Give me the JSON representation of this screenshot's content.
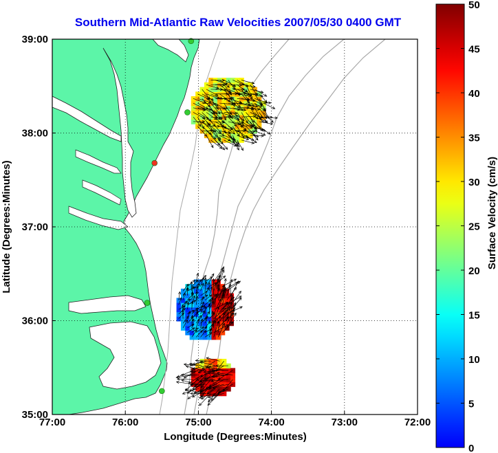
{
  "chart_data": {
    "type": "map",
    "title": "Southern Mid-Atlantic Raw Velocities 2007/05/30 0400 GMT",
    "xlabel": "Longitude (Degrees:Minutes)",
    "ylabel": "Latitude (Degrees:Minutes)",
    "xlim": [
      -77,
      -72
    ],
    "ylim": [
      35,
      39
    ],
    "x_ticks": [
      {
        "value": -77,
        "label": "77:00"
      },
      {
        "value": -76,
        "label": "76:00"
      },
      {
        "value": -75,
        "label": "75:00"
      },
      {
        "value": -74,
        "label": "74:00"
      },
      {
        "value": -73,
        "label": "73:00"
      },
      {
        "value": -72,
        "label": "72:00"
      }
    ],
    "y_ticks": [
      {
        "value": 35,
        "label": "35:00"
      },
      {
        "value": 36,
        "label": "36:00"
      },
      {
        "value": 37,
        "label": "37:00"
      },
      {
        "value": 38,
        "label": "38:00"
      },
      {
        "value": 39,
        "label": "39:00"
      }
    ],
    "grid": true,
    "colorbar": {
      "label": "Surface Velocity (cm/s)",
      "min": 0,
      "max": 50,
      "ticks": [
        {
          "value": 0,
          "label": "0"
        },
        {
          "value": 5,
          "label": "5"
        },
        {
          "value": 10,
          "label": "10"
        },
        {
          "value": 15,
          "label": "15"
        },
        {
          "value": 20,
          "label": "20"
        },
        {
          "value": 25,
          "label": "25"
        },
        {
          "value": 30,
          "label": "30"
        },
        {
          "value": 35,
          "label": "35"
        },
        {
          "value": 40,
          "label": "40"
        },
        {
          "value": 45,
          "label": "45"
        },
        {
          "value": 50,
          "label": "50"
        }
      ]
    },
    "velocity_regions": [
      {
        "name": "",
        "lon_range": [
          -75.1,
          -74.1
        ],
        "lat_range": [
          37.9,
          38.6
        ],
        "speed_range": [
          25,
          36
        ],
        "mean_speed": 31,
        "direction_deg": -30
      },
      {
        "name": "",
        "lon_range": [
          -75.3,
          -74.5
        ],
        "lat_range": [
          35.8,
          36.45
        ],
        "speed_range": [
          8,
          50
        ],
        "mean_speed": 15,
        "direction_deg": 60
      },
      {
        "name": "",
        "lon_range": [
          -75.1,
          -74.5
        ],
        "lat_range": [
          35.2,
          35.6
        ],
        "speed_range": [
          25,
          50
        ],
        "mean_speed": 42,
        "direction_deg": 200
      }
    ],
    "stations": [
      {
        "lon": -75.1,
        "lat": 38.98,
        "status": "active",
        "color": "#33cc33"
      },
      {
        "lon": -75.15,
        "lat": 38.22,
        "status": "active",
        "color": "#33cc33"
      },
      {
        "lon": -75.6,
        "lat": 37.68,
        "status": "inactive",
        "color": "#ee3322"
      },
      {
        "lon": -75.7,
        "lat": 36.19,
        "status": "active",
        "color": "#33cc33"
      },
      {
        "lon": -75.5,
        "lat": 35.25,
        "status": "active",
        "color": "#33cc33"
      }
    ],
    "colors": {
      "land": "#5cf5a8",
      "water": "#ffffff",
      "bathymetry": "#a8a8a8",
      "title": "#0000ee",
      "vectors": "#000000"
    }
  }
}
